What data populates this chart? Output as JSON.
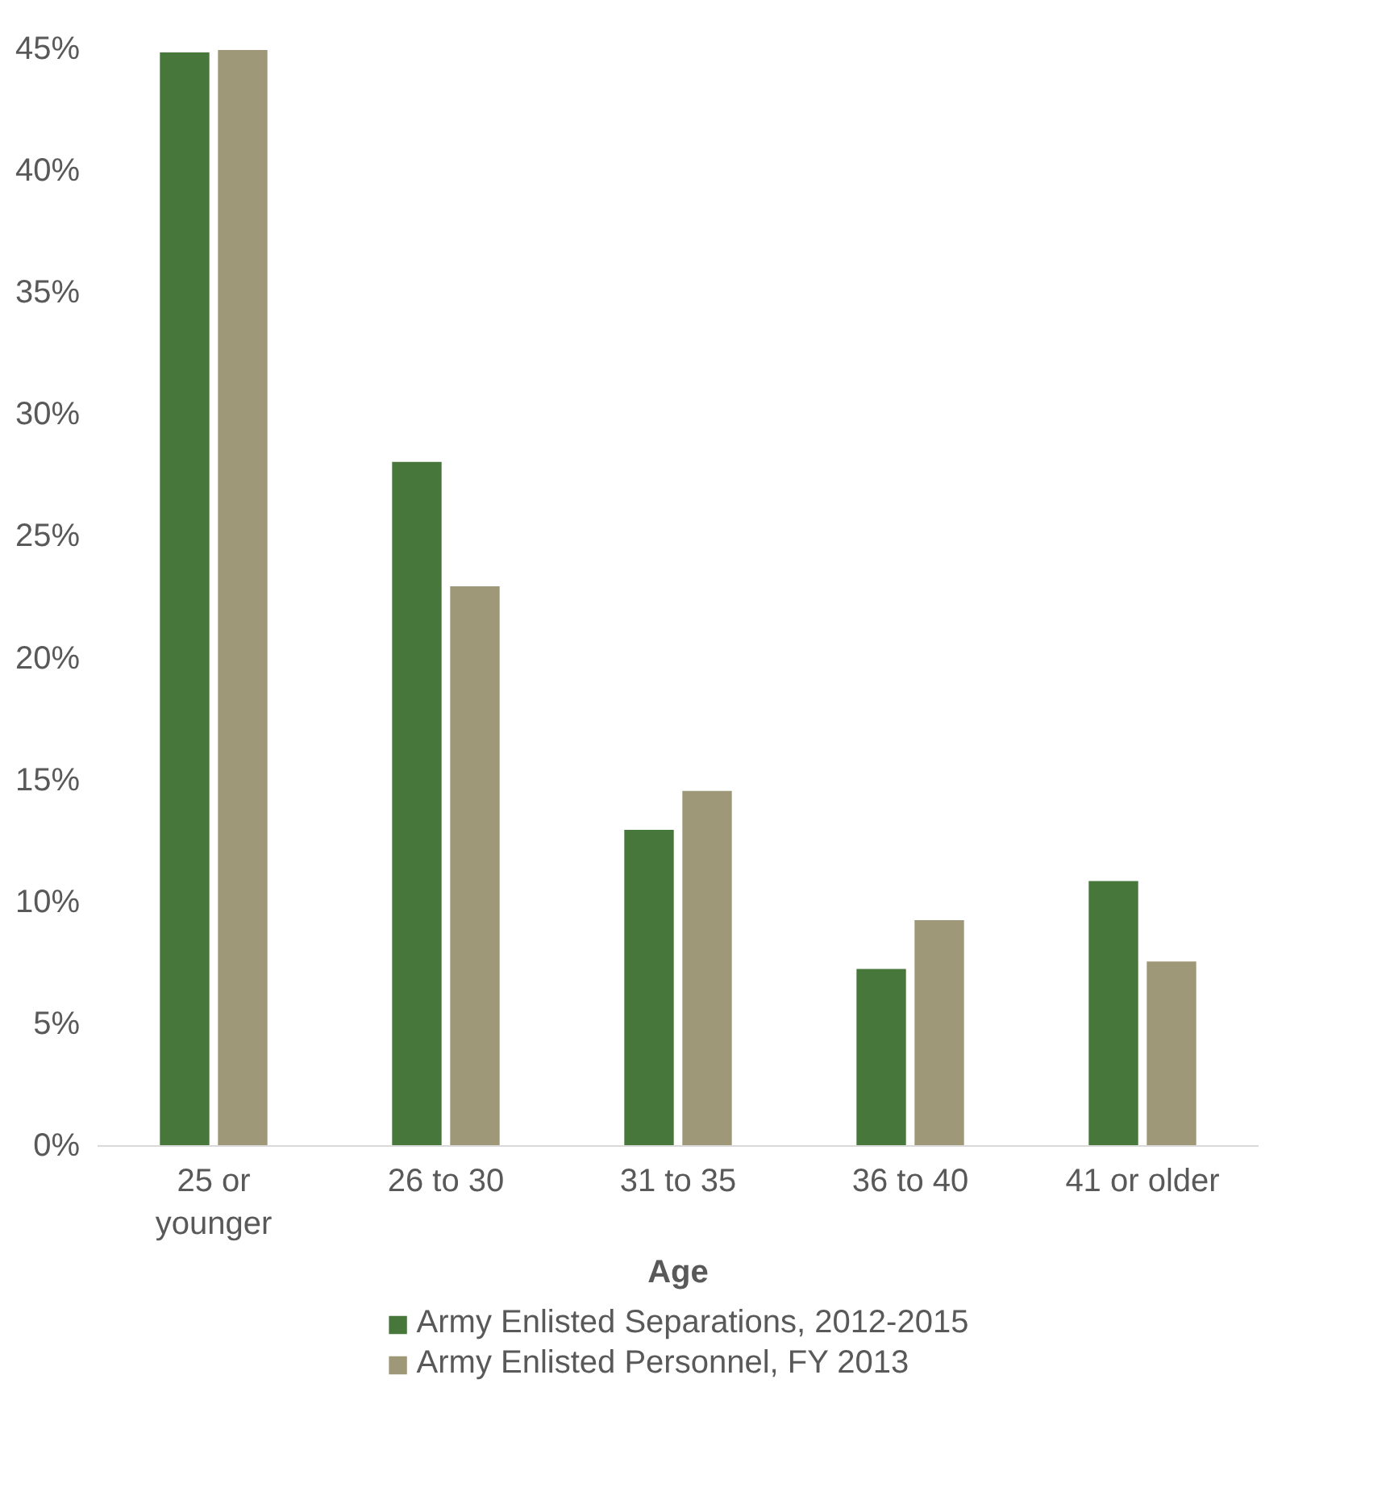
{
  "chart_data": {
    "type": "bar",
    "xlabel": "Age",
    "categories": [
      "25 or younger",
      "26 to 30",
      "31 to 35",
      "36 to 40",
      "41 or older"
    ],
    "series": [
      {
        "name": "Army Enlisted Separations, 2012-2015",
        "color": "#48773c",
        "values": [
          44.9,
          28.1,
          13.0,
          7.3,
          10.9
        ]
      },
      {
        "name": "Army Enlisted Personnel, FY 2013",
        "color": "#9f9878",
        "values": [
          45.0,
          23.0,
          14.6,
          9.3,
          7.6
        ]
      }
    ],
    "ylim": [
      0,
      45
    ],
    "yticks": [
      {
        "value": 0,
        "label": "0%"
      },
      {
        "value": 5,
        "label": "5%"
      },
      {
        "value": 10,
        "label": "10%"
      },
      {
        "value": 15,
        "label": "15%"
      },
      {
        "value": 20,
        "label": "20%"
      },
      {
        "value": 25,
        "label": "25%"
      },
      {
        "value": 30,
        "label": "30%"
      },
      {
        "value": 35,
        "label": "35%"
      },
      {
        "value": 40,
        "label": "40%"
      },
      {
        "value": 45,
        "label": "45%"
      }
    ],
    "grid": false,
    "legend": "bottom"
  }
}
